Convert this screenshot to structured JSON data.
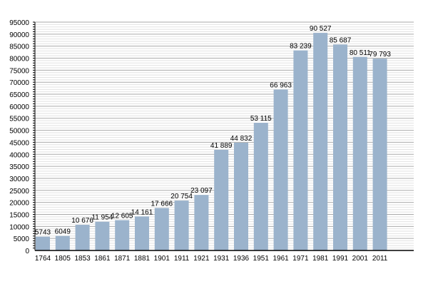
{
  "chart_data": {
    "type": "bar",
    "title": "",
    "xlabel": "",
    "ylabel": "",
    "ylim": [
      0,
      95000
    ],
    "yticks": [
      0,
      5000,
      10000,
      15000,
      20000,
      25000,
      30000,
      35000,
      40000,
      45000,
      50000,
      55000,
      60000,
      65000,
      70000,
      75000,
      80000,
      85000,
      90000,
      95000
    ],
    "grid": true,
    "categories": [
      "1764",
      "1805",
      "1853",
      "1861",
      "1871",
      "1881",
      "1901",
      "1911",
      "1921",
      "1931",
      "1936",
      "1951",
      "1961",
      "1971",
      "1981",
      "1991",
      "2001",
      "2011"
    ],
    "values": [
      5743,
      6049,
      10676,
      11954,
      12605,
      14161,
      17666,
      20754,
      23097,
      41889,
      44832,
      53115,
      66963,
      83239,
      90527,
      85687,
      80511,
      79793
    ],
    "labels": [
      "5743",
      "6049",
      "10 676",
      "11 954",
      "12 605",
      "14 161",
      "17 666",
      "20 754",
      "23 097",
      "41 889",
      "44 832",
      "53 115",
      "66 963",
      "83 239",
      "90 527",
      "85 687",
      "80 511",
      "79 793"
    ],
    "bar_color": "#9bb3cc"
  }
}
